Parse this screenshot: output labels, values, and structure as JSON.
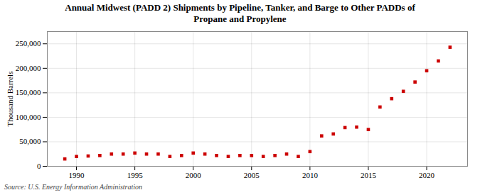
{
  "chart_data": {
    "type": "scatter",
    "title": "Annual Midwest (PADD 2) Shipments by Pipeline, Tanker, and Barge to Other PADDs of\nPropane and Propylene",
    "ylabel": "Thousand Barrels",
    "source": "Source: U.S. Energy Information Administration",
    "x": [
      1989,
      1990,
      1991,
      1992,
      1993,
      1994,
      1995,
      1996,
      1997,
      1998,
      1999,
      2000,
      2001,
      2002,
      2003,
      2004,
      2005,
      2006,
      2007,
      2008,
      2009,
      2010,
      2011,
      2012,
      2013,
      2014,
      2015,
      2016,
      2017,
      2018,
      2019,
      2020,
      2021,
      2022
    ],
    "values": [
      15000,
      20000,
      21000,
      22000,
      25000,
      25000,
      27000,
      25000,
      25000,
      20000,
      22000,
      27000,
      25000,
      22000,
      20000,
      22000,
      22000,
      20000,
      22000,
      25000,
      20000,
      30000,
      62000,
      66000,
      79000,
      80000,
      75000,
      121000,
      138000,
      153000,
      172000,
      195000,
      215000,
      243000
    ],
    "color": "#cc0000",
    "marker": "square",
    "xlim": [
      1987.5,
      2023.5
    ],
    "xticks": [
      1990,
      1995,
      2000,
      2005,
      2010,
      2015,
      2020
    ],
    "ylim": [
      0,
      275000
    ],
    "yticks": [
      0,
      {
        "value": 50000,
        "label": "50,000"
      },
      {
        "value": 100000,
        "label": "100,000"
      },
      {
        "value": 150000,
        "label": "150,000"
      },
      {
        "value": 200000,
        "label": "200,000"
      },
      {
        "value": 250000,
        "label": "250,000"
      }
    ],
    "grid": true
  }
}
